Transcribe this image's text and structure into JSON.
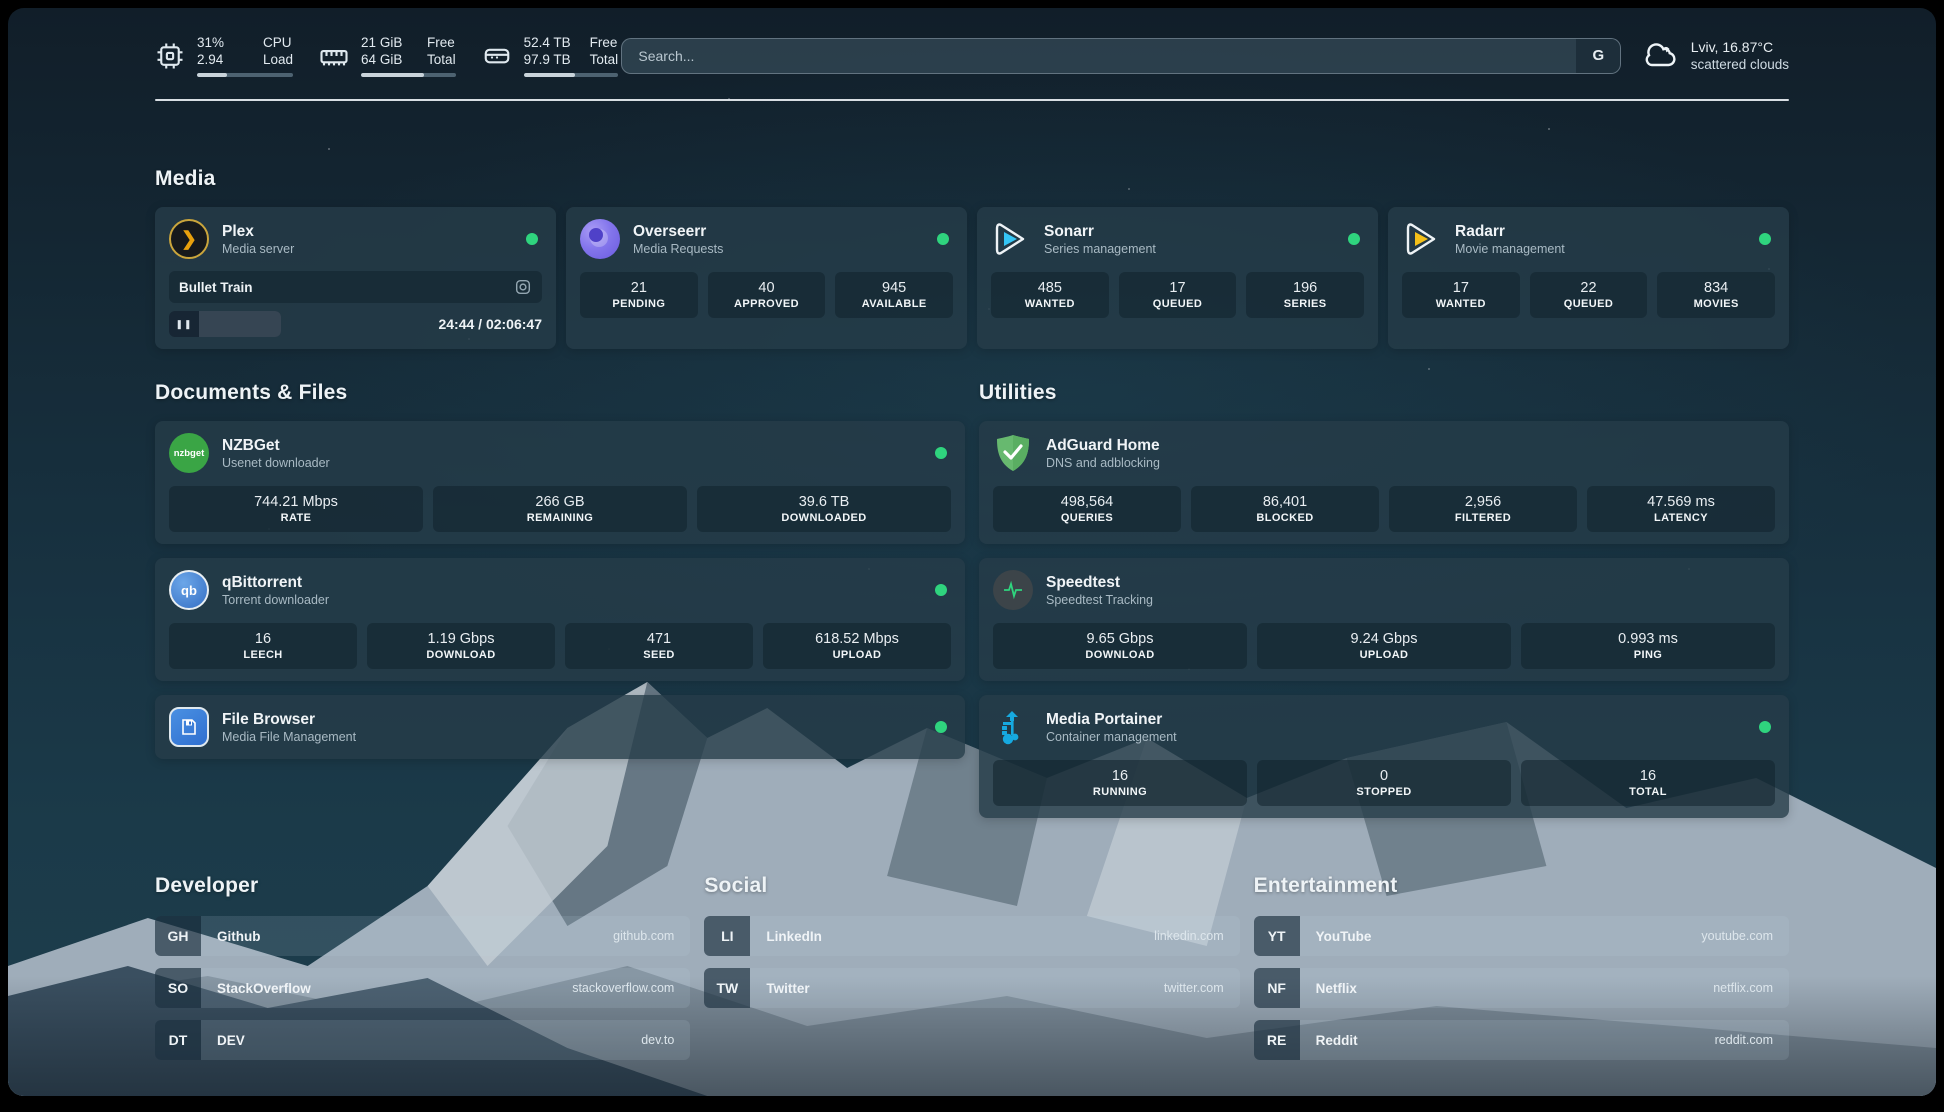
{
  "colors": {
    "status_ok": "#2fd47e",
    "accent_sky": "#183342"
  },
  "topbar": {
    "widgets": [
      {
        "name": "cpu",
        "icon": "cpu-icon",
        "values": [
          "31%",
          "2.94"
        ],
        "labels": [
          "CPU",
          "Load"
        ],
        "progress_pct": 31
      },
      {
        "name": "memory",
        "icon": "memory-icon",
        "values": [
          "21 GiB",
          "64 GiB"
        ],
        "labels": [
          "Free",
          "Total"
        ],
        "progress_pct": 67
      },
      {
        "name": "disk",
        "icon": "disk-icon",
        "values": [
          "52.4 TB",
          "97.9 TB"
        ],
        "labels": [
          "Free",
          "Total"
        ],
        "progress_pct": 54
      }
    ],
    "search": {
      "placeholder": "Search...",
      "button_label": "G"
    },
    "weather": {
      "location_temp": "Lviv, 16.87°C",
      "condition": "scattered clouds"
    }
  },
  "media": {
    "title": "Media",
    "cards": [
      {
        "title": "Plex",
        "subtitle": "Media server",
        "online": true,
        "now_playing": {
          "title": "Bullet Train",
          "time": "24:44 / 02:06:47",
          "progress_pct": 20,
          "pause_glyph": "❚❚"
        }
      },
      {
        "title": "Overseerr",
        "subtitle": "Media Requests",
        "online": true,
        "stats": [
          {
            "value": "21",
            "label": "PENDING"
          },
          {
            "value": "40",
            "label": "APPROVED"
          },
          {
            "value": "945",
            "label": "AVAILABLE"
          }
        ]
      },
      {
        "title": "Sonarr",
        "subtitle": "Series management",
        "online": true,
        "stats": [
          {
            "value": "485",
            "label": "WANTED"
          },
          {
            "value": "17",
            "label": "QUEUED"
          },
          {
            "value": "196",
            "label": "SERIES"
          }
        ]
      },
      {
        "title": "Radarr",
        "subtitle": "Movie management",
        "online": true,
        "stats": [
          {
            "value": "17",
            "label": "WANTED"
          },
          {
            "value": "22",
            "label": "QUEUED"
          },
          {
            "value": "834",
            "label": "MOVIES"
          }
        ]
      }
    ]
  },
  "documents": {
    "title": "Documents & Files",
    "cards": [
      {
        "title": "NZBGet",
        "subtitle": "Usenet downloader",
        "online": true,
        "badge": "nzbget",
        "stats": [
          {
            "value": "744.21 Mbps",
            "label": "RATE"
          },
          {
            "value": "266 GB",
            "label": "REMAINING"
          },
          {
            "value": "39.6 TB",
            "label": "DOWNLOADED"
          }
        ]
      },
      {
        "title": "qBittorrent",
        "subtitle": "Torrent downloader",
        "online": true,
        "badge": "qb",
        "stats": [
          {
            "value": "16",
            "label": "LEECH"
          },
          {
            "value": "1.19 Gbps",
            "label": "DOWNLOAD"
          },
          {
            "value": "471",
            "label": "SEED"
          },
          {
            "value": "618.52 Mbps",
            "label": "UPLOAD"
          }
        ]
      },
      {
        "title": "File Browser",
        "subtitle": "Media File Management",
        "online": true,
        "stats": []
      }
    ]
  },
  "utilities": {
    "title": "Utilities",
    "cards": [
      {
        "title": "AdGuard Home",
        "subtitle": "DNS and adblocking",
        "online": false,
        "stats": [
          {
            "value": "498,564",
            "label": "QUERIES"
          },
          {
            "value": "86,401",
            "label": "BLOCKED"
          },
          {
            "value": "2,956",
            "label": "FILTERED"
          },
          {
            "value": "47.569 ms",
            "label": "LATENCY"
          }
        ]
      },
      {
        "title": "Speedtest",
        "subtitle": "Speedtest Tracking",
        "online": false,
        "stats": [
          {
            "value": "9.65 Gbps",
            "label": "DOWNLOAD"
          },
          {
            "value": "9.24 Gbps",
            "label": "UPLOAD"
          },
          {
            "value": "0.993 ms",
            "label": "PING"
          }
        ]
      },
      {
        "title": "Media Portainer",
        "subtitle": "Container management",
        "online": true,
        "stats": [
          {
            "value": "16",
            "label": "RUNNING"
          },
          {
            "value": "0",
            "label": "STOPPED"
          },
          {
            "value": "16",
            "label": "TOTAL"
          }
        ]
      }
    ]
  },
  "bookmarks": {
    "groups": [
      {
        "title": "Developer",
        "items": [
          {
            "abbr": "GH",
            "name": "Github",
            "url": "github.com"
          },
          {
            "abbr": "SO",
            "name": "StackOverflow",
            "url": "stackoverflow.com"
          },
          {
            "abbr": "DT",
            "name": "DEV",
            "url": "dev.to"
          }
        ]
      },
      {
        "title": "Social",
        "items": [
          {
            "abbr": "LI",
            "name": "LinkedIn",
            "url": "linkedin.com"
          },
          {
            "abbr": "TW",
            "name": "Twitter",
            "url": "twitter.com"
          }
        ]
      },
      {
        "title": "Entertainment",
        "items": [
          {
            "abbr": "YT",
            "name": "YouTube",
            "url": "youtube.com"
          },
          {
            "abbr": "NF",
            "name": "Netflix",
            "url": "netflix.com"
          },
          {
            "abbr": "RE",
            "name": "Reddit",
            "url": "reddit.com"
          }
        ]
      }
    ]
  },
  "icon_names": [
    "cpu-icon",
    "memory-icon",
    "disk-icon",
    "search-icon",
    "cloud-icon",
    "plex-icon",
    "overseerr-icon",
    "sonarr-icon",
    "radarr-icon",
    "nzbget-icon",
    "qbittorrent-icon",
    "filebrowser-icon",
    "adguard-icon",
    "speedtest-icon",
    "portainer-icon",
    "camera-icon",
    "pause-icon",
    "status-dot"
  ]
}
